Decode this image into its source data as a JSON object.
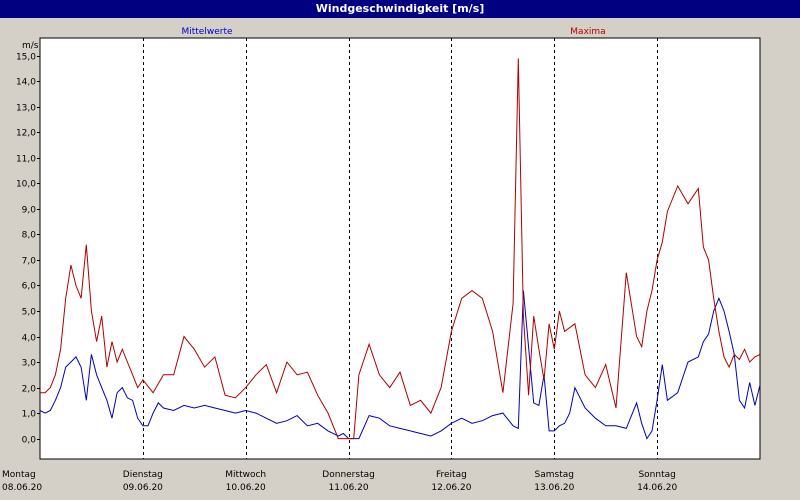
{
  "window": {
    "title": "Windgeschwindigkeit [m/s]"
  },
  "colors": {
    "mean": "#0000c0",
    "max": "#b00000",
    "plot_bg": "#ffffff",
    "frame_bg": "#d4d0c8",
    "title_bg": "#000080"
  },
  "chart_data": {
    "type": "line",
    "title": "Windgeschwindigkeit [m/s]",
    "ylabel": "m/s",
    "ylim": [
      -0.8,
      15.7
    ],
    "yticks": [
      "0,0",
      "1,0",
      "2,0",
      "3,0",
      "4,0",
      "5,0",
      "6,0",
      "7,0",
      "8,0",
      "9,0",
      "10,0",
      "11,0",
      "12,0",
      "13,0",
      "14,0",
      "15,0"
    ],
    "x_unit": "days since Montag 08.06.20 00:00",
    "xlim": [
      0,
      7
    ],
    "day_ticks": [
      {
        "day": "Montag",
        "date": "08.06.20"
      },
      {
        "day": "Dienstag",
        "date": "09.06.20"
      },
      {
        "day": "Mittwoch",
        "date": "10.06.20"
      },
      {
        "day": "Donnerstag",
        "date": "11.06.20"
      },
      {
        "day": "Freitag",
        "date": "12.06.20"
      },
      {
        "day": "Samstag",
        "date": "13.06.20"
      },
      {
        "day": "Sonntag",
        "date": "14.06.20"
      }
    ],
    "grid": "dashed-vertical-at-day-boundaries",
    "series": [
      {
        "name": "Mittelwerte",
        "color": "#0000c0",
        "x": [
          0.0,
          0.05,
          0.1,
          0.15,
          0.2,
          0.25,
          0.3,
          0.35,
          0.4,
          0.45,
          0.5,
          0.55,
          0.6,
          0.65,
          0.7,
          0.75,
          0.8,
          0.85,
          0.9,
          0.95,
          1.0,
          1.05,
          1.1,
          1.15,
          1.2,
          1.3,
          1.4,
          1.5,
          1.6,
          1.7,
          1.8,
          1.9,
          2.0,
          2.1,
          2.2,
          2.3,
          2.4,
          2.5,
          2.6,
          2.7,
          2.8,
          2.9,
          2.95,
          3.0,
          3.05,
          3.1,
          3.2,
          3.3,
          3.4,
          3.5,
          3.6,
          3.7,
          3.8,
          3.9,
          4.0,
          4.1,
          4.2,
          4.3,
          4.4,
          4.5,
          4.6,
          4.65,
          4.7,
          4.8,
          4.85,
          4.9,
          4.95,
          5.0,
          5.05,
          5.1,
          5.15,
          5.2,
          5.3,
          5.4,
          5.5,
          5.6,
          5.7,
          5.8,
          5.85,
          5.9,
          5.95,
          6.0,
          6.05,
          6.1,
          6.2,
          6.3,
          6.4,
          6.45,
          6.5,
          6.55,
          6.6,
          6.65,
          6.7,
          6.75,
          6.8,
          6.85,
          6.9,
          6.95,
          7.0
        ],
        "values": [
          1.1,
          1.0,
          1.1,
          1.5,
          2.0,
          2.8,
          3.0,
          3.2,
          2.8,
          1.5,
          3.3,
          2.5,
          2.0,
          1.5,
          0.8,
          1.8,
          2.0,
          1.6,
          1.5,
          0.8,
          0.5,
          0.5,
          1.0,
          1.4,
          1.2,
          1.1,
          1.3,
          1.2,
          1.3,
          1.2,
          1.1,
          1.0,
          1.1,
          1.0,
          0.8,
          0.6,
          0.7,
          0.9,
          0.5,
          0.6,
          0.3,
          0.1,
          0.2,
          0.0,
          0.0,
          0.0,
          0.9,
          0.8,
          0.5,
          0.4,
          0.3,
          0.2,
          0.1,
          0.3,
          0.6,
          0.8,
          0.6,
          0.7,
          0.9,
          1.0,
          0.5,
          0.4,
          5.8,
          1.4,
          1.3,
          2.5,
          0.3,
          0.3,
          0.5,
          0.6,
          1.0,
          2.0,
          1.2,
          0.8,
          0.5,
          0.5,
          0.4,
          1.4,
          0.6,
          0.0,
          0.3,
          1.5,
          2.9,
          1.5,
          1.8,
          3.0,
          3.2,
          3.8,
          4.1,
          5.0,
          5.5,
          5.0,
          4.2,
          3.3,
          1.5,
          1.2,
          2.2,
          1.3,
          2.1
        ]
      },
      {
        "name": "Maxima",
        "color": "#b00000",
        "x": [
          0.0,
          0.05,
          0.1,
          0.15,
          0.2,
          0.25,
          0.3,
          0.35,
          0.4,
          0.45,
          0.5,
          0.55,
          0.6,
          0.65,
          0.7,
          0.75,
          0.8,
          0.85,
          0.9,
          0.95,
          1.0,
          1.1,
          1.2,
          1.3,
          1.4,
          1.5,
          1.6,
          1.7,
          1.8,
          1.9,
          2.0,
          2.1,
          2.2,
          2.3,
          2.4,
          2.5,
          2.6,
          2.7,
          2.8,
          2.9,
          2.95,
          3.0,
          3.05,
          3.1,
          3.2,
          3.3,
          3.4,
          3.5,
          3.6,
          3.7,
          3.8,
          3.9,
          4.0,
          4.1,
          4.2,
          4.3,
          4.4,
          4.5,
          4.6,
          4.65,
          4.7,
          4.75,
          4.8,
          4.85,
          4.9,
          4.95,
          5.0,
          5.05,
          5.1,
          5.2,
          5.3,
          5.4,
          5.5,
          5.6,
          5.7,
          5.8,
          5.85,
          5.9,
          5.95,
          6.0,
          6.05,
          6.1,
          6.2,
          6.3,
          6.4,
          6.45,
          6.5,
          6.55,
          6.6,
          6.65,
          6.7,
          6.75,
          6.8,
          6.85,
          6.9,
          6.95,
          7.0
        ],
        "values": [
          1.8,
          1.8,
          2.0,
          2.5,
          3.5,
          5.5,
          6.8,
          6.0,
          5.5,
          7.6,
          5.0,
          3.8,
          4.8,
          2.8,
          3.8,
          3.0,
          3.5,
          3.0,
          2.5,
          2.0,
          2.3,
          1.8,
          2.5,
          2.5,
          4.0,
          3.5,
          2.8,
          3.2,
          1.7,
          1.6,
          2.0,
          2.5,
          2.9,
          1.8,
          3.0,
          2.5,
          2.6,
          1.7,
          1.0,
          0.0,
          0.0,
          0.0,
          0.0,
          2.5,
          3.7,
          2.5,
          2.0,
          2.6,
          1.3,
          1.5,
          1.0,
          2.0,
          4.2,
          5.5,
          5.8,
          5.5,
          4.2,
          1.8,
          5.3,
          14.9,
          4.8,
          1.7,
          4.8,
          3.5,
          2.3,
          4.5,
          3.5,
          5.0,
          4.2,
          4.5,
          2.5,
          2.0,
          2.9,
          1.2,
          6.5,
          4.0,
          3.6,
          5.0,
          5.8,
          7.0,
          7.7,
          8.9,
          9.9,
          9.2,
          9.8,
          7.5,
          7.0,
          5.5,
          4.2,
          3.2,
          2.8,
          3.3,
          3.1,
          3.5,
          3.0,
          3.2,
          3.3
        ]
      }
    ],
    "legend": [
      {
        "label": "Mittelwerte",
        "position": "top-left"
      },
      {
        "label": "Maxima",
        "position": "top-right"
      }
    ]
  }
}
